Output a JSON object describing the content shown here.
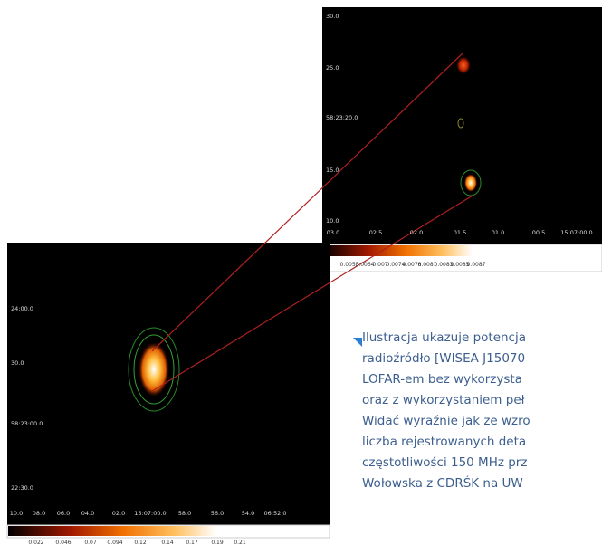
{
  "figure": {
    "top_panel": {
      "y_labels": [
        "30.0",
        "25.0",
        "58:23:20.0",
        "15.0",
        "10.0"
      ],
      "x_labels": [
        "03.0",
        "02.5",
        "02.0",
        "01.5",
        "01.0",
        "00.5",
        "15:07:00.0"
      ],
      "colorbar_labels": [
        "0.0053",
        "0.0064",
        "0.007",
        "0.0074",
        "0.0078",
        "0.0081",
        "0.0083",
        "0.0085",
        "0.0087"
      ]
    },
    "bottom_panel": {
      "y_labels": [
        "24:00.0",
        "30.0",
        "58:23:00.0",
        "22:30.0"
      ],
      "x_labels": [
        "10.0",
        "08.0",
        "06.0",
        "04.0",
        "02.0",
        "15:07:00.0",
        "58.0",
        "56.0",
        "54.0",
        "06:52.0"
      ],
      "colorbar_labels": [
        "0.022",
        "0.046",
        "0.07",
        "0.094",
        "0.12",
        "0.14",
        "0.17",
        "0.19",
        "0.21"
      ]
    }
  },
  "caption": {
    "lines": [
      "Ilustracja ukazuje potencja",
      "radioźródło [WISEA J15070",
      "LOFAR-em bez wykorzysta",
      "oraz z wykorzystaniem peł",
      "Widać wyraźnie jak ze wzro",
      "liczba rejestrowanych deta",
      "częstotliwości 150 MHz prz",
      "Wołowska z CDRŚK na UW"
    ]
  }
}
